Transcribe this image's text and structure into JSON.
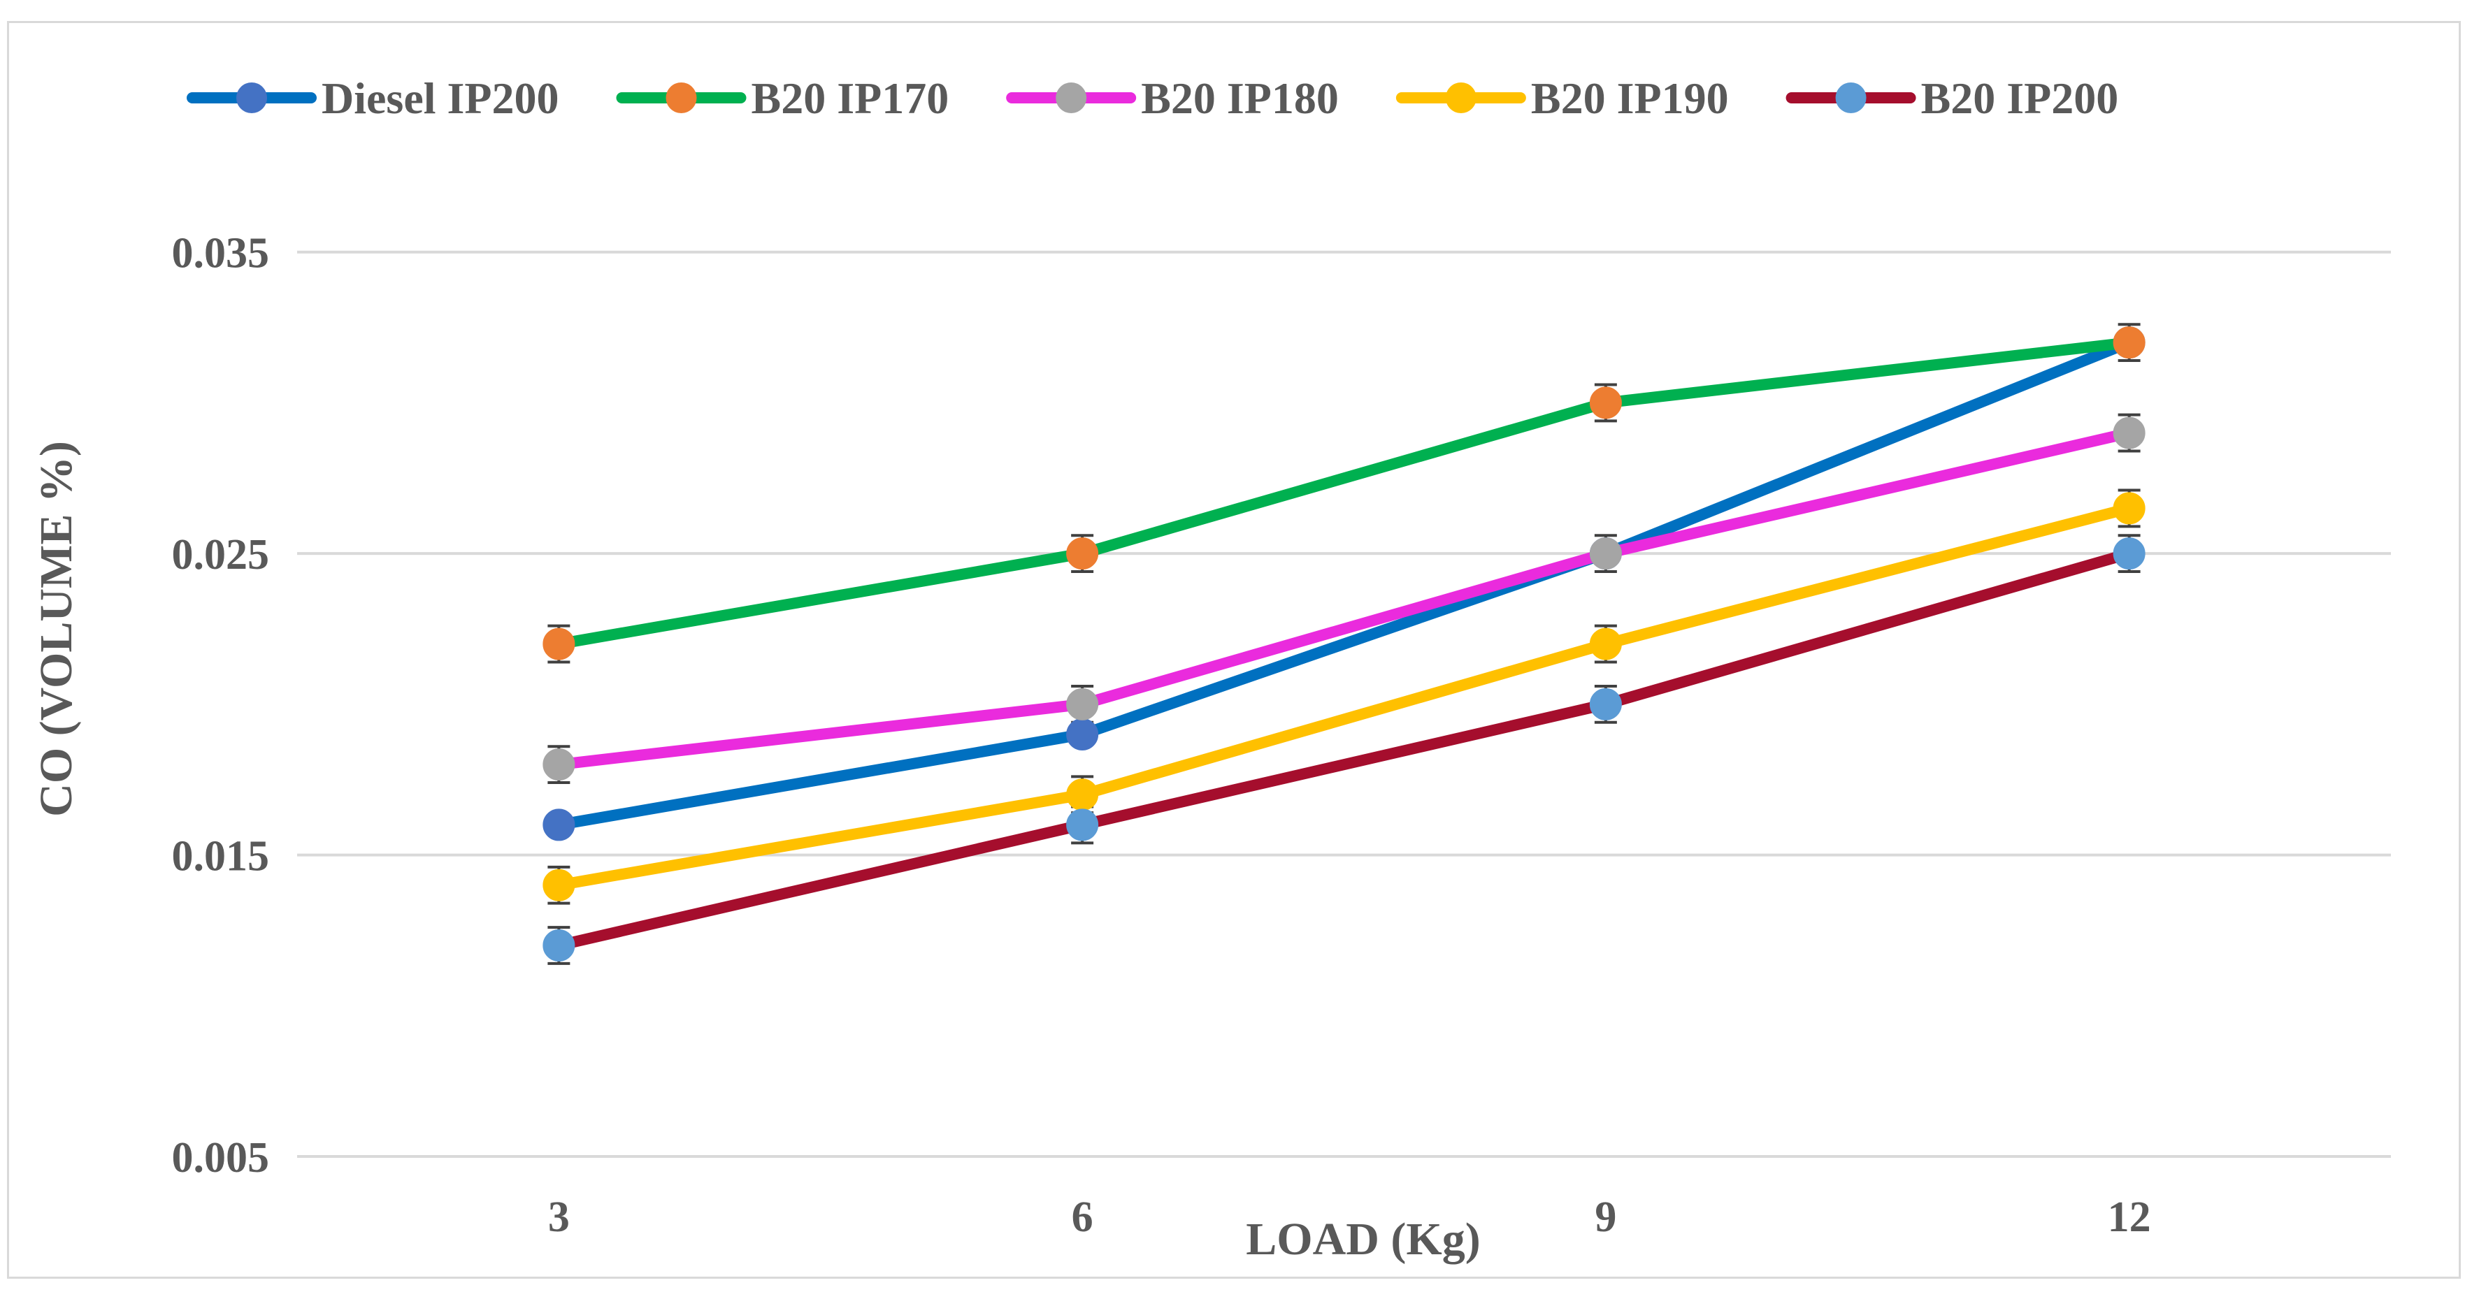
{
  "chart_data": {
    "type": "line",
    "title": "",
    "xlabel": "LOAD (Kg)",
    "ylabel": "CO (VOLUME %)",
    "categories": [
      "3",
      "6",
      "9",
      "12"
    ],
    "ylim": [
      0.005,
      0.04
    ],
    "yticks": [
      "0.005",
      "0.015",
      "0.025",
      "0.035"
    ],
    "ytick_values": [
      0.005,
      0.015,
      0.025,
      0.035
    ],
    "grid": true,
    "legend_position": "top",
    "error_bars": true,
    "series": [
      {
        "name": "Diesel IP200",
        "values": [
          0.016,
          0.019,
          0.025,
          0.032
        ],
        "line_color": "#0070c0",
        "marker_color": "#4472c4",
        "error": 0.0
      },
      {
        "name": "B20 IP170",
        "values": [
          0.022,
          0.025,
          0.03,
          0.032
        ],
        "line_color": "#00b050",
        "marker_color": "#ed7d31",
        "error": 0.0006
      },
      {
        "name": "B20 IP180",
        "values": [
          0.018,
          0.02,
          0.025,
          0.029
        ],
        "line_color": "#ea2bdd",
        "marker_color": "#a5a5a5",
        "error": 0.0006
      },
      {
        "name": "B20 IP190",
        "values": [
          0.014,
          0.017,
          0.022,
          0.0265
        ],
        "line_color": "#ffc000",
        "marker_color": "#ffc000",
        "error": 0.0006
      },
      {
        "name": "B20 IP200",
        "values": [
          0.012,
          0.016,
          0.02,
          0.025
        ],
        "line_color": "#a50e2d",
        "marker_color": "#5b9bd5",
        "error": 0.0006
      }
    ]
  }
}
